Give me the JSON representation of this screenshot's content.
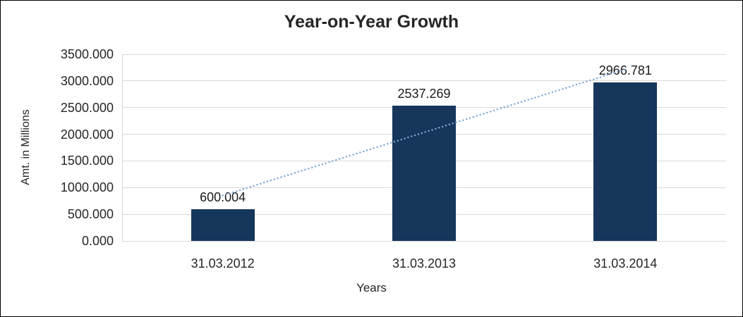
{
  "chart_data": {
    "type": "bar",
    "title": "Year-on-Year Growth",
    "xlabel": "Years",
    "ylabel": "Amt. in Millions",
    "categories": [
      "31.03.2012",
      "31.03.2013",
      "31.03.2014"
    ],
    "values": [
      600.004,
      2537.269,
      2966.781
    ],
    "value_labels": [
      "600.004",
      "2537.269",
      "2966.781"
    ],
    "ylim": [
      0,
      3500
    ],
    "ytick_step": 500,
    "ytick_labels": [
      "0.000",
      "500.000",
      "1000.000",
      "1500.000",
      "2000.000",
      "2500.000",
      "3000.000",
      "3500.000"
    ],
    "grid": true,
    "legend": "none",
    "bar_color": "#16365c",
    "gridline_color": "#d9d9d9",
    "trendline": {
      "type": "linear",
      "style": "dotted",
      "color": "#7ba7d4"
    }
  }
}
